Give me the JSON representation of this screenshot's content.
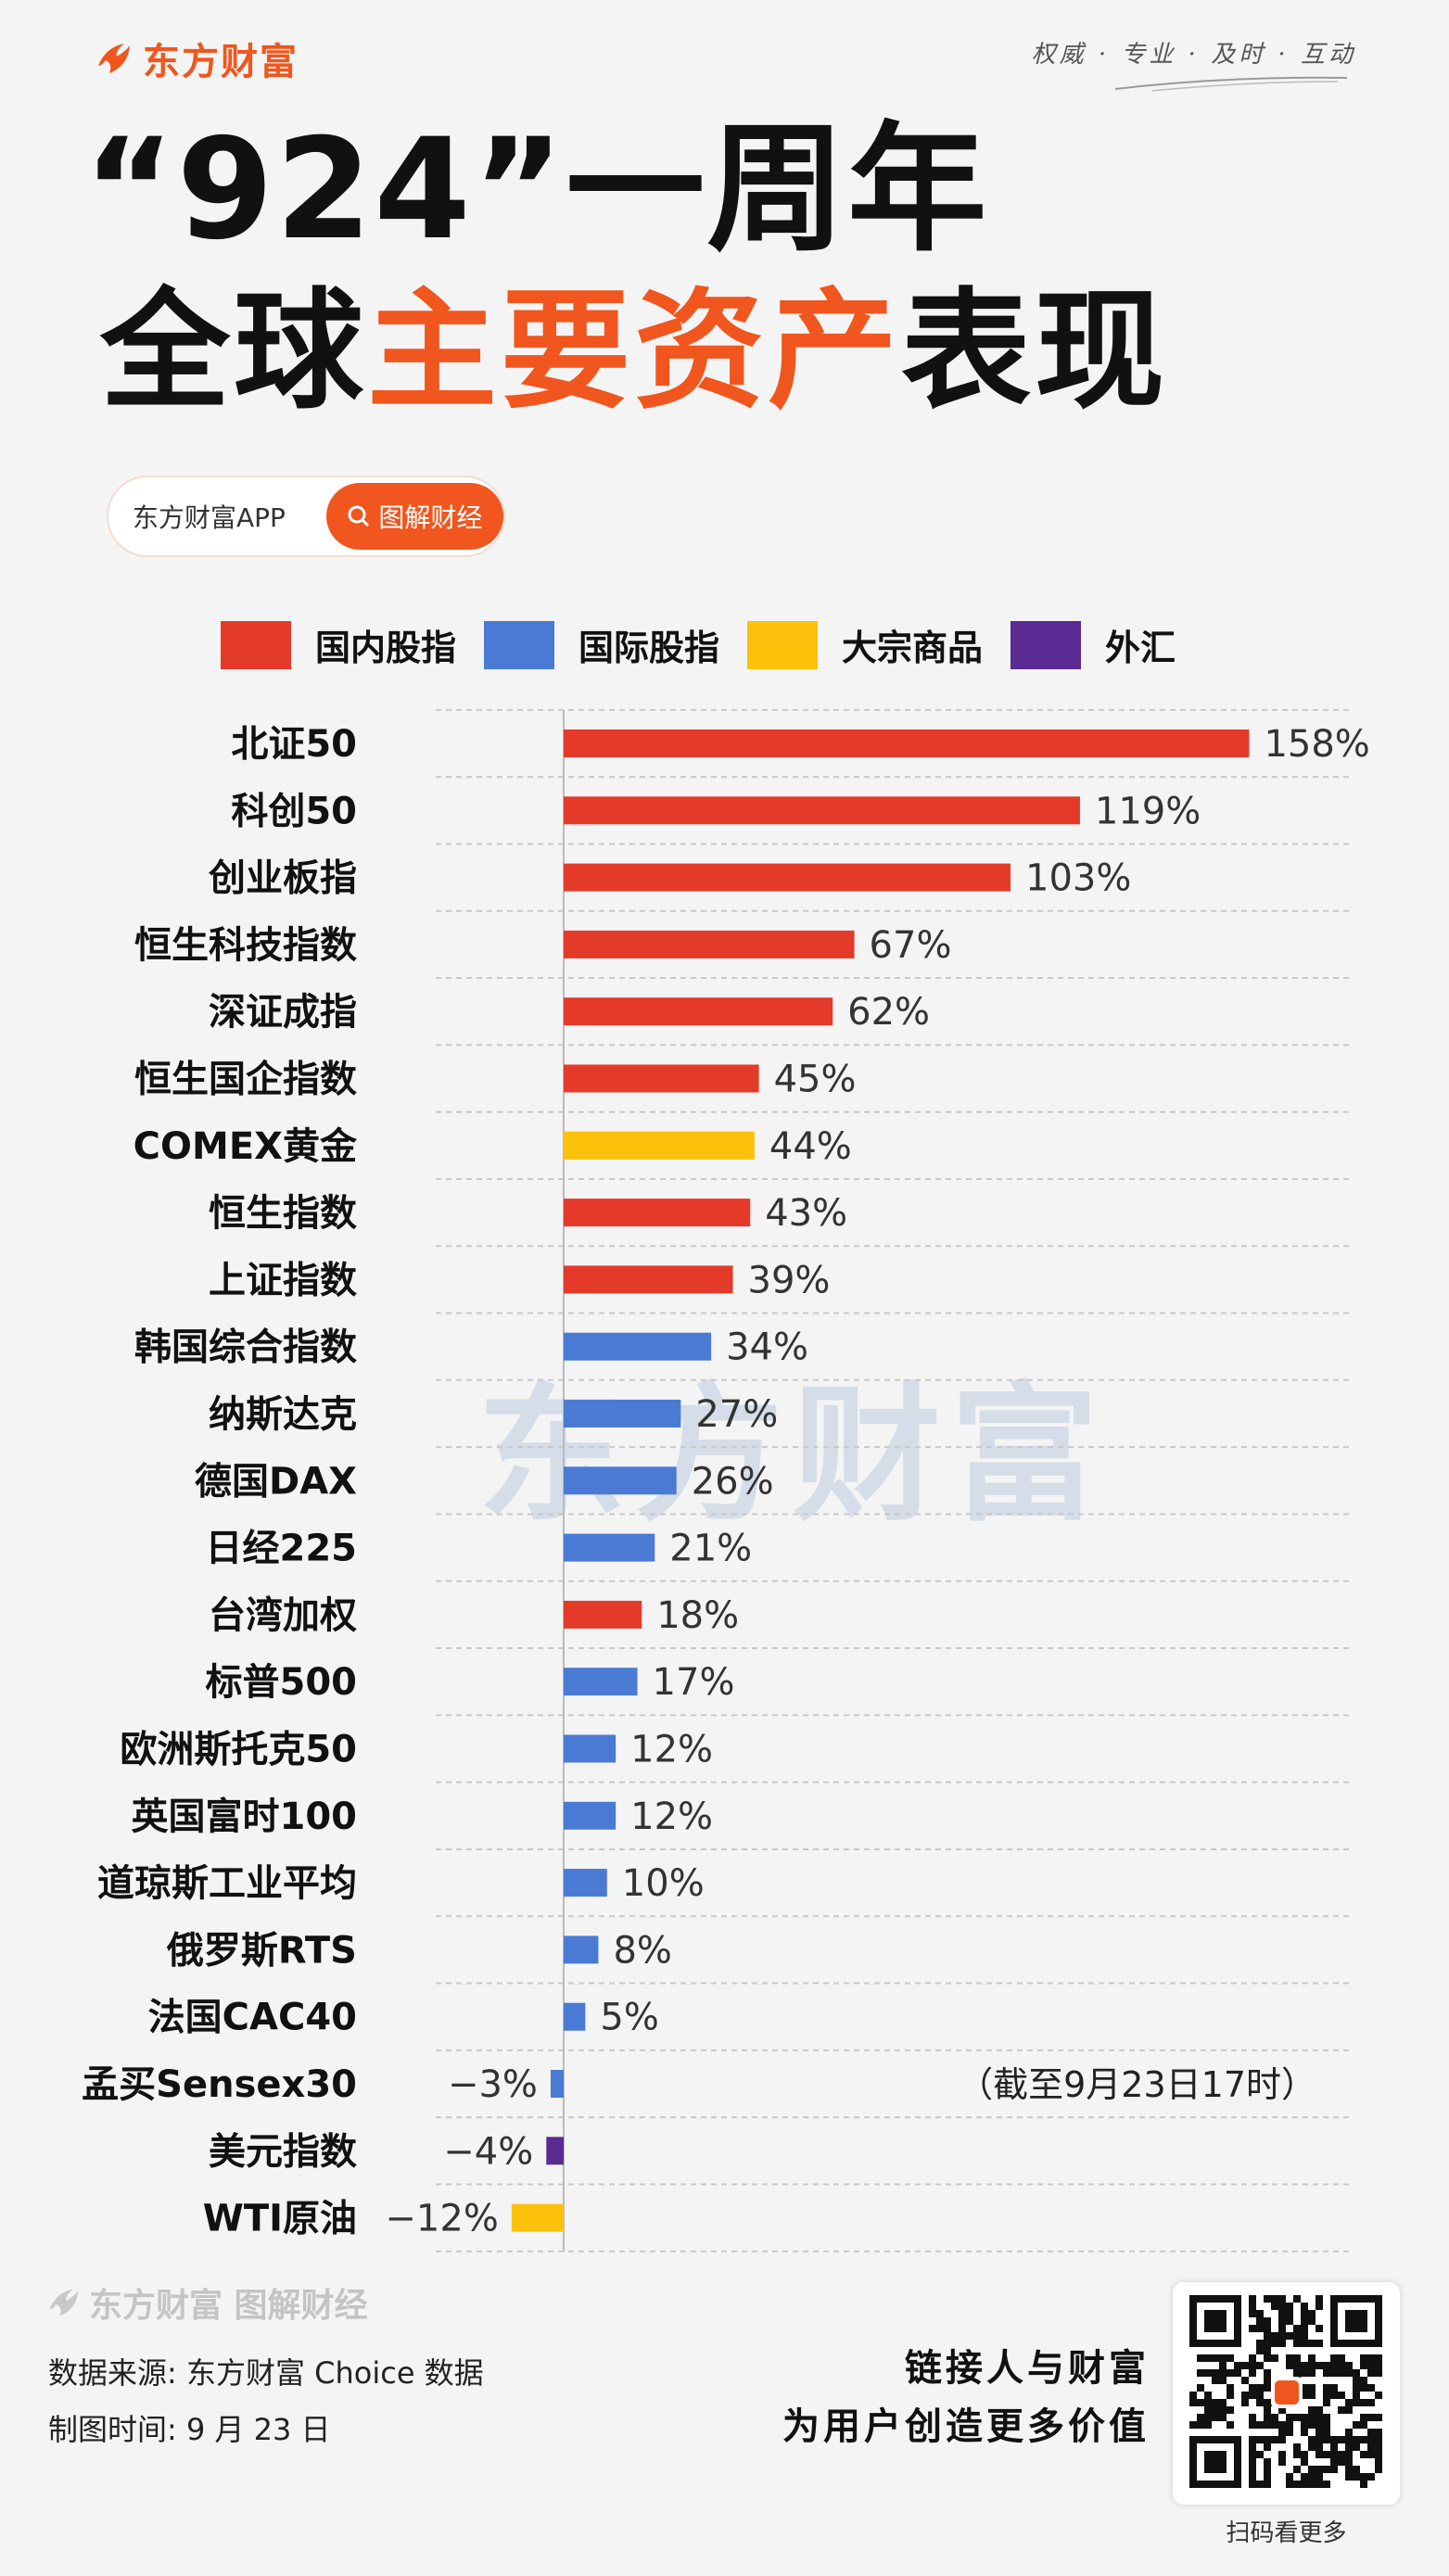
{
  "brand": {
    "name": "东方财富",
    "slogan": "权威 · 专业 · 及时 · 互动"
  },
  "title": {
    "line1": "“924”一周年",
    "line2_prefix": "全球",
    "line2_highlight": "主要资产",
    "line2_suffix": "表现"
  },
  "badge": {
    "app": "东方财富APP",
    "button": "图解财经"
  },
  "colors": {
    "brand": "#f0561d",
    "domestic": "#e43a2a",
    "international": "#4a7ad4",
    "commodity": "#fcc10a",
    "fx": "#5a2b93"
  },
  "legend": [
    {
      "label": "国内股指",
      "color": "#e43a2a"
    },
    {
      "label": "国际股指",
      "color": "#4a7ad4"
    },
    {
      "label": "大宗商品",
      "color": "#fcc10a"
    },
    {
      "label": "外汇",
      "color": "#5a2b93"
    }
  ],
  "watermark": "东方财富",
  "chart_data": {
    "type": "bar",
    "orientation": "horizontal",
    "categories": [
      "北证50",
      "科创50",
      "创业板指",
      "恒生科技指数",
      "深证成指",
      "恒生国企指数",
      "COMEX黄金",
      "恒生指数",
      "上证指数",
      "韩国综合指数",
      "纳斯达克",
      "德国DAX",
      "日经225",
      "台湾加权",
      "标普500",
      "欧洲斯托克50",
      "英国富时100",
      "道琼斯工业平均",
      "俄罗斯RTS",
      "法国CAC40",
      "孟买Sensex30",
      "美元指数",
      "WTI原油"
    ],
    "values": [
      158,
      119,
      103,
      67,
      62,
      45,
      44,
      43,
      39,
      34,
      27,
      26,
      21,
      18,
      17,
      12,
      12,
      10,
      8,
      5,
      -3,
      -4,
      -12
    ],
    "labels": [
      "158%",
      "119%",
      "103%",
      "67%",
      "62%",
      "45%",
      "44%",
      "43%",
      "39%",
      "34%",
      "27%",
      "26%",
      "21%",
      "18%",
      "17%",
      "12%",
      "12%",
      "10%",
      "8%",
      "5%",
      "−3%",
      "−4%",
      "−12%"
    ],
    "groups": [
      "domestic",
      "domestic",
      "domestic",
      "domestic",
      "domestic",
      "domestic",
      "commodity",
      "domestic",
      "domestic",
      "international",
      "international",
      "international",
      "international",
      "domestic",
      "international",
      "international",
      "international",
      "international",
      "international",
      "international",
      "international",
      "fx",
      "commodity"
    ],
    "note": "（截至9月23日17时）",
    "grid": true,
    "legend_position": "top"
  },
  "footer": {
    "brand": "东方财富 图解财经",
    "source": "数据来源: 东方财富 Choice 数据",
    "date": "制图时间: 9 月 23 日",
    "tagline1": "链接人与财富",
    "tagline2": "为用户创造更多价值",
    "qr_caption": "扫码看更多"
  }
}
